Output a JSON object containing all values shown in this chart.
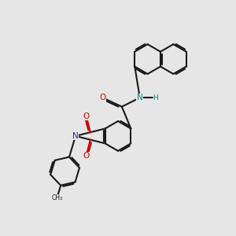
{
  "bg_color": "#e6e6e6",
  "bond_color": "#1a1a1a",
  "N_color": "#2222cc",
  "O_color": "#cc0000",
  "NH_color": "#008888",
  "lw": 1.5,
  "dbl_off": 0.055,
  "figsize": [
    3.0,
    3.0
  ],
  "dpi": 100,
  "xlim": [
    -1.5,
    4.5
  ],
  "ylim": [
    -3.5,
    5.5
  ]
}
